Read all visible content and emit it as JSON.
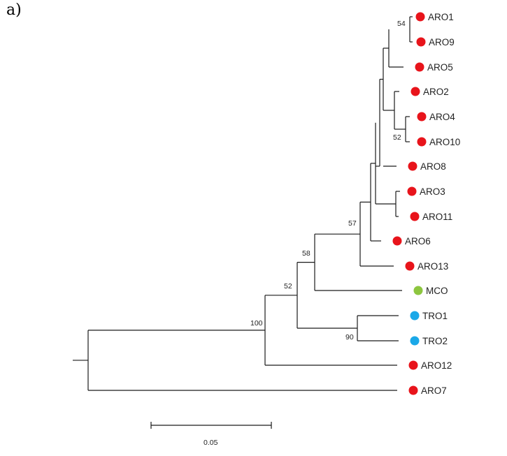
{
  "panel_label": "a)",
  "colors": {
    "ARO": "#e8141b",
    "MCO": "#8dc63f",
    "TRO": "#1aa8e8",
    "branch": "#1a1a1a"
  },
  "leaves": [
    {
      "id": "ARO1",
      "label": "ARO1",
      "group": "ARO"
    },
    {
      "id": "ARO9",
      "label": "ARO9",
      "group": "ARO"
    },
    {
      "id": "ARO5",
      "label": "ARO5",
      "group": "ARO"
    },
    {
      "id": "ARO2",
      "label": "ARO2",
      "group": "ARO"
    },
    {
      "id": "ARO4",
      "label": "ARO4",
      "group": "ARO"
    },
    {
      "id": "ARO10",
      "label": "ARO10",
      "group": "ARO"
    },
    {
      "id": "ARO8",
      "label": "ARO8",
      "group": "ARO"
    },
    {
      "id": "ARO3",
      "label": "ARO3",
      "group": "ARO"
    },
    {
      "id": "ARO11",
      "label": "ARO11",
      "group": "ARO"
    },
    {
      "id": "ARO6",
      "label": "ARO6",
      "group": "ARO"
    },
    {
      "id": "ARO13",
      "label": "ARO13",
      "group": "ARO"
    },
    {
      "id": "MCO",
      "label": "MCO",
      "group": "MCO"
    },
    {
      "id": "TRO1",
      "label": "TRO1",
      "group": "TRO"
    },
    {
      "id": "TRO2",
      "label": "TRO2",
      "group": "TRO"
    },
    {
      "id": "ARO12",
      "label": "ARO12",
      "group": "ARO"
    },
    {
      "id": "ARO7",
      "label": "ARO7",
      "group": "ARO"
    }
  ],
  "bootstrap": [
    {
      "node": "ARO1-ARO9",
      "value": "54"
    },
    {
      "node": "ARO4-ARO10",
      "value": "52"
    },
    {
      "node": "ARO-core",
      "value": "57"
    },
    {
      "node": "ARO-MCO",
      "value": "58"
    },
    {
      "node": "ARO-MCO-TRO",
      "value": "52"
    },
    {
      "node": "TRO1-TRO2",
      "value": "90"
    },
    {
      "node": "ingroup",
      "value": "100"
    }
  ],
  "scale_bar": {
    "label": "0.05"
  }
}
